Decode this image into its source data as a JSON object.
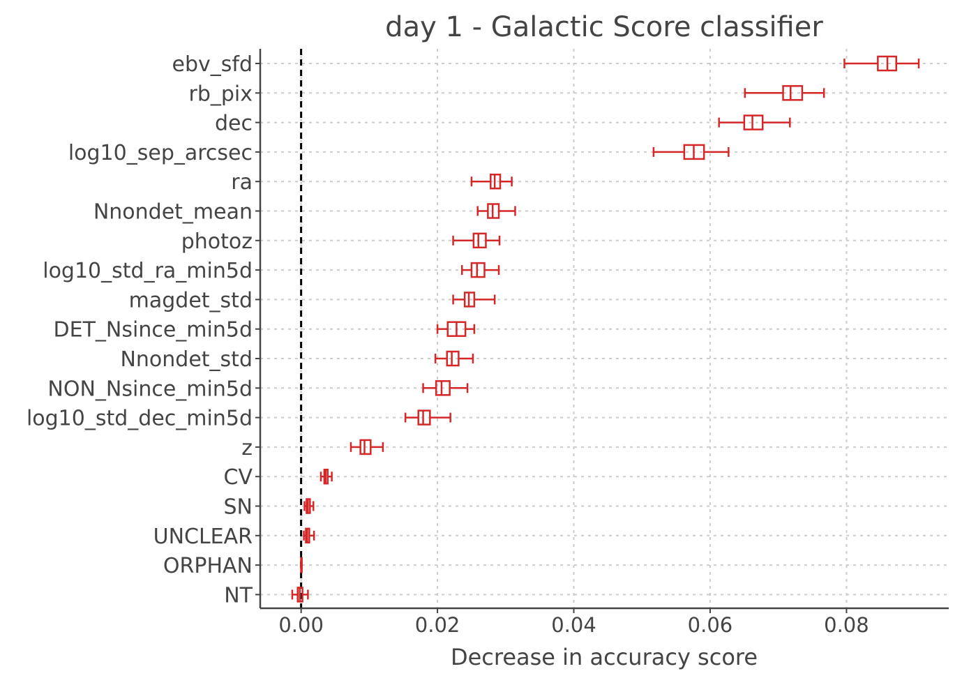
{
  "chart_data": {
    "type": "box",
    "orientation": "horizontal",
    "title": "day 1 - Galactic Score classifier",
    "xlabel": "Decrease in accuracy score",
    "ylabel": "",
    "xlim": [
      -0.006,
      0.095
    ],
    "xticks": [
      0.0,
      0.02,
      0.04,
      0.06,
      0.08
    ],
    "xtick_labels": [
      "0.00",
      "0.02",
      "0.04",
      "0.06",
      "0.08"
    ],
    "grid": true,
    "reference_line": 0.0,
    "colors": {
      "box": "#d62728",
      "text": "#444444",
      "grid": "#cccccc",
      "axis": "#444444",
      "reference": "#000000"
    },
    "series": [
      {
        "label": "ebv_sfd",
        "whisker_low": 0.0797,
        "q1": 0.0846,
        "median": 0.086,
        "q3": 0.0873,
        "whisker_high": 0.0906
      },
      {
        "label": "rb_pix",
        "whisker_low": 0.0651,
        "q1": 0.0707,
        "median": 0.0718,
        "q3": 0.0735,
        "whisker_high": 0.0767
      },
      {
        "label": "dec",
        "whisker_low": 0.0613,
        "q1": 0.065,
        "median": 0.0662,
        "q3": 0.0677,
        "whisker_high": 0.0717
      },
      {
        "label": "log10_sep_arcsec",
        "whisker_low": 0.0517,
        "q1": 0.0562,
        "median": 0.0576,
        "q3": 0.0591,
        "whisker_high": 0.0627
      },
      {
        "label": "ra",
        "whisker_low": 0.025,
        "q1": 0.0278,
        "median": 0.0284,
        "q3": 0.0292,
        "whisker_high": 0.0309
      },
      {
        "label": "Nnondet_mean",
        "whisker_low": 0.0259,
        "q1": 0.0274,
        "median": 0.0281,
        "q3": 0.029,
        "whisker_high": 0.0314
      },
      {
        "label": "photoz",
        "whisker_low": 0.0223,
        "q1": 0.0253,
        "median": 0.026,
        "q3": 0.0271,
        "whisker_high": 0.0291
      },
      {
        "label": "log10_std_ra_min5d",
        "whisker_low": 0.0236,
        "q1": 0.025,
        "median": 0.0258,
        "q3": 0.0269,
        "whisker_high": 0.029
      },
      {
        "label": "magdet_std",
        "whisker_low": 0.0223,
        "q1": 0.024,
        "median": 0.0246,
        "q3": 0.0254,
        "whisker_high": 0.0284
      },
      {
        "label": "DET_Nsince_min5d",
        "whisker_low": 0.02,
        "q1": 0.0215,
        "median": 0.0228,
        "q3": 0.0241,
        "whisker_high": 0.0254
      },
      {
        "label": "Nnondet_std",
        "whisker_low": 0.0197,
        "q1": 0.0214,
        "median": 0.0221,
        "q3": 0.0231,
        "whisker_high": 0.0252
      },
      {
        "label": "NON_Nsince_min5d",
        "whisker_low": 0.0179,
        "q1": 0.0198,
        "median": 0.0206,
        "q3": 0.0218,
        "whisker_high": 0.0244
      },
      {
        "label": "log10_std_dec_min5d",
        "whisker_low": 0.0153,
        "q1": 0.0172,
        "median": 0.0179,
        "q3": 0.0189,
        "whisker_high": 0.0219
      },
      {
        "label": "z",
        "whisker_low": 0.0073,
        "q1": 0.0087,
        "median": 0.0093,
        "q3": 0.0102,
        "whisker_high": 0.012
      },
      {
        "label": "CV",
        "whisker_low": 0.0029,
        "q1": 0.0034,
        "median": 0.0036,
        "q3": 0.0039,
        "whisker_high": 0.0045
      },
      {
        "label": "SN",
        "whisker_low": 0.0005,
        "q1": 0.0008,
        "median": 0.001,
        "q3": 0.0013,
        "whisker_high": 0.0018
      },
      {
        "label": "UNCLEAR",
        "whisker_low": 0.0004,
        "q1": 0.0007,
        "median": 0.0009,
        "q3": 0.0012,
        "whisker_high": 0.0019
      },
      {
        "label": "ORPHAN",
        "whisker_low": 0.0,
        "q1": 0.0,
        "median": 0.0,
        "q3": 0.0,
        "whisker_high": 0.0001
      },
      {
        "label": "NT",
        "whisker_low": -0.0013,
        "q1": -0.0005,
        "median": -0.0002,
        "q3": 0.0002,
        "whisker_high": 0.001
      }
    ]
  }
}
